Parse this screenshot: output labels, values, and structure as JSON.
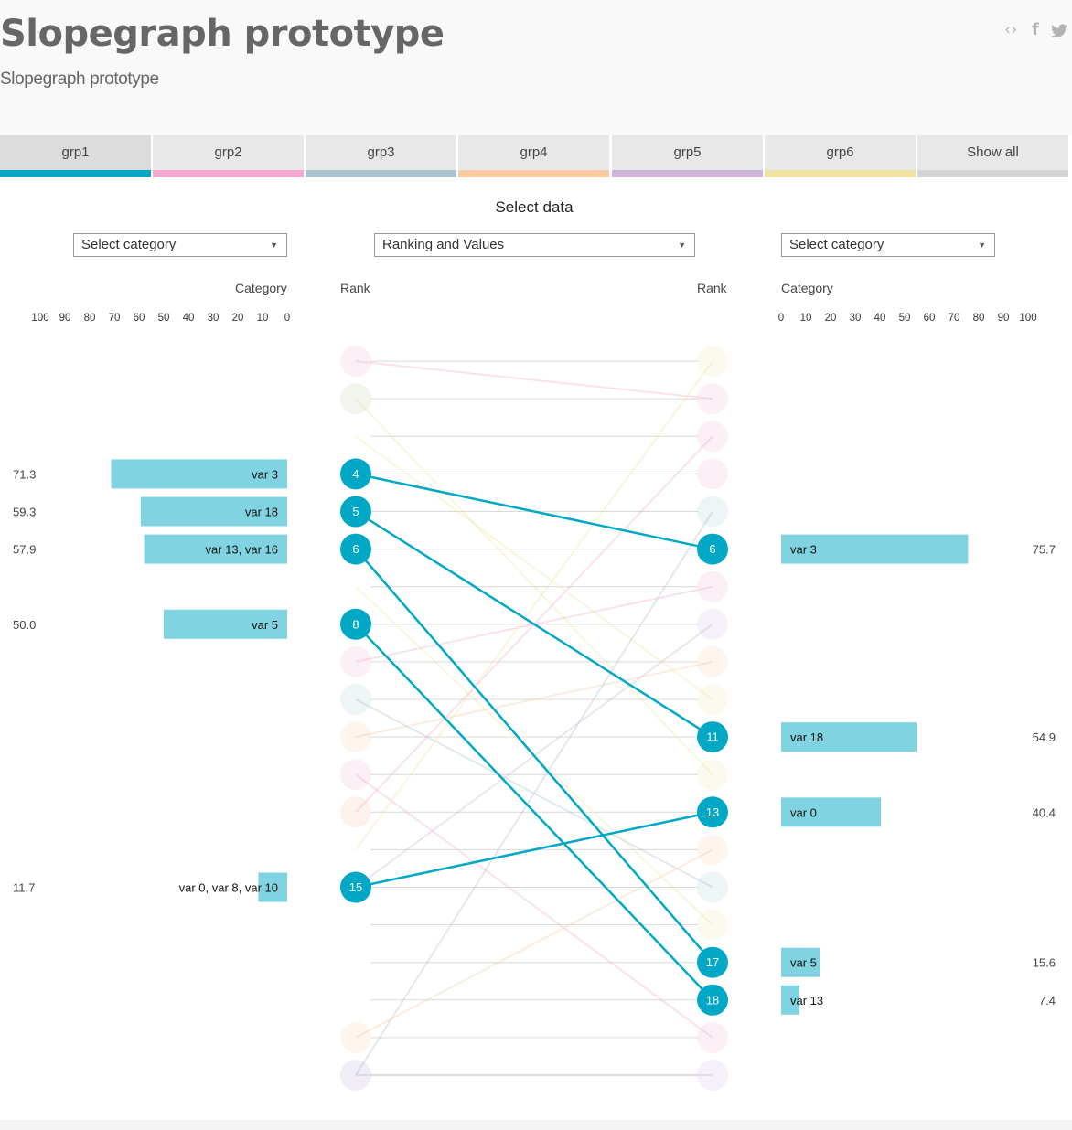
{
  "header": {
    "title": "Slopegraph prototype",
    "subtitle": "Slopegraph prototype",
    "share_icons": [
      "embed-icon",
      "facebook-icon",
      "twitter-icon"
    ]
  },
  "tabs": [
    {
      "label": "grp1",
      "color": "#00a8c6",
      "active": true
    },
    {
      "label": "grp2",
      "color": "#f4a7cf",
      "active": false
    },
    {
      "label": "grp3",
      "color": "#a9c3cf",
      "active": false
    },
    {
      "label": "grp4",
      "color": "#f9caa0",
      "active": false
    },
    {
      "label": "grp5",
      "color": "#cdb4d8",
      "active": false
    },
    {
      "label": "grp6",
      "color": "#f0e4a0",
      "active": false
    },
    {
      "label": "Show all",
      "color": "#d4d4d4",
      "active": false
    }
  ],
  "controls": {
    "select_data_label": "Select data",
    "left_select": "Select category",
    "middle_select": "Ranking and Values",
    "right_select": "Select category"
  },
  "chart_data": {
    "type": "slopegraph",
    "left_axis": {
      "label": "Category",
      "ticks": [
        "100",
        "90",
        "80",
        "70",
        "60",
        "50",
        "40",
        "30",
        "20",
        "10",
        "0"
      ],
      "range": [
        100,
        0
      ]
    },
    "right_axis": {
      "label": "Category",
      "ticks": [
        "0",
        "10",
        "20",
        "30",
        "40",
        "50",
        "60",
        "70",
        "80",
        "90",
        "100"
      ],
      "range": [
        0,
        100
      ]
    },
    "left_rank_label": "Rank",
    "right_rank_label": "Rank",
    "rank_slots": 20,
    "highlight_color": "#00a8c6",
    "bar_color": "#80d4e2",
    "highlighted_links": [
      {
        "from": 4,
        "to": 6
      },
      {
        "from": 5,
        "to": 11
      },
      {
        "from": 6,
        "to": 17
      },
      {
        "from": 8,
        "to": 18
      },
      {
        "from": 15,
        "to": 13
      }
    ],
    "left_bars": [
      {
        "rank": 4,
        "value": 71.3,
        "value_label": "71.3",
        "label": "var 3"
      },
      {
        "rank": 5,
        "value": 59.3,
        "value_label": "59.3",
        "label": "var 18"
      },
      {
        "rank": 6,
        "value": 57.9,
        "value_label": "57.9",
        "label": "var 13, var 16"
      },
      {
        "rank": 8,
        "value": 50.0,
        "value_label": "50.0",
        "label": "var 5"
      },
      {
        "rank": 15,
        "value": 11.7,
        "value_label": "11.7",
        "label": "var 0, var 8, var 10"
      }
    ],
    "right_bars": [
      {
        "rank": 6,
        "value": 75.7,
        "value_label": "75.7",
        "label": "var 3"
      },
      {
        "rank": 11,
        "value": 54.9,
        "value_label": "54.9",
        "label": "var 18"
      },
      {
        "rank": 13,
        "value": 40.4,
        "value_label": "40.4",
        "label": "var 0"
      },
      {
        "rank": 17,
        "value": 15.6,
        "value_label": "15.6",
        "label": "var 5"
      },
      {
        "rank": 18,
        "value": 7.4,
        "value_label": "7.4",
        "label": "var 13"
      }
    ],
    "faded_left_dots": [
      {
        "rank": 1,
        "color": "#f4a7cf"
      },
      {
        "rank": 2,
        "color": "#b8c4a0"
      },
      {
        "rank": 9,
        "color": "#f4a7cf"
      },
      {
        "rank": 10,
        "color": "#a9c3cf"
      },
      {
        "rank": 11,
        "color": "#f9caa0"
      },
      {
        "rank": 12,
        "color": "#f4a7cf"
      },
      {
        "rank": 13,
        "color": "#f9b8a0"
      },
      {
        "rank": 19,
        "color": "#f9caa0"
      },
      {
        "rank": 20,
        "color": "#b39cd0"
      }
    ],
    "faded_right_dots": [
      {
        "rank": 1,
        "color": "#f0e4a0"
      },
      {
        "rank": 2,
        "color": "#f4a7cf"
      },
      {
        "rank": 3,
        "color": "#f4a7cf"
      },
      {
        "rank": 4,
        "color": "#f4a7cf"
      },
      {
        "rank": 5,
        "color": "#a9c3cf"
      },
      {
        "rank": 7,
        "color": "#f4a7cf"
      },
      {
        "rank": 8,
        "color": "#cdb4d8"
      },
      {
        "rank": 9,
        "color": "#f9caa0"
      },
      {
        "rank": 10,
        "color": "#f0e4a0"
      },
      {
        "rank": 12,
        "color": "#f0e4a0"
      },
      {
        "rank": 14,
        "color": "#f9caa0"
      },
      {
        "rank": 15,
        "color": "#a9c3cf"
      },
      {
        "rank": 16,
        "color": "#f0e4a0"
      },
      {
        "rank": 19,
        "color": "#f4a7cf"
      },
      {
        "rank": 20,
        "color": "#cdb4d8"
      }
    ],
    "faded_links": [
      {
        "from": 1,
        "to": 2,
        "color": "#f4a7cf"
      },
      {
        "from": 2,
        "to": 12,
        "color": "#f0e4a0"
      },
      {
        "from": 9,
        "to": 7,
        "color": "#f4a7cf"
      },
      {
        "from": 10,
        "to": 15,
        "color": "#a9c3cf"
      },
      {
        "from": 11,
        "to": 9,
        "color": "#f9caa0"
      },
      {
        "from": 12,
        "to": 19,
        "color": "#f4a7cf"
      },
      {
        "from": 13,
        "to": 3,
        "color": "#f4a7cf"
      },
      {
        "from": 14,
        "to": 1,
        "color": "#f0e4a0"
      },
      {
        "from": 15,
        "to": 8,
        "color": "#cdb4d8"
      },
      {
        "from": 19,
        "to": 14,
        "color": "#f9caa0"
      },
      {
        "from": 20,
        "to": 5,
        "color": "#a9c3cf"
      },
      {
        "from": 20,
        "to": 20,
        "color": "#cdb4d8"
      },
      {
        "from": 7,
        "to": 16,
        "color": "#f0e4a0"
      },
      {
        "from": 3,
        "to": 10,
        "color": "#f0e4a0"
      }
    ]
  }
}
